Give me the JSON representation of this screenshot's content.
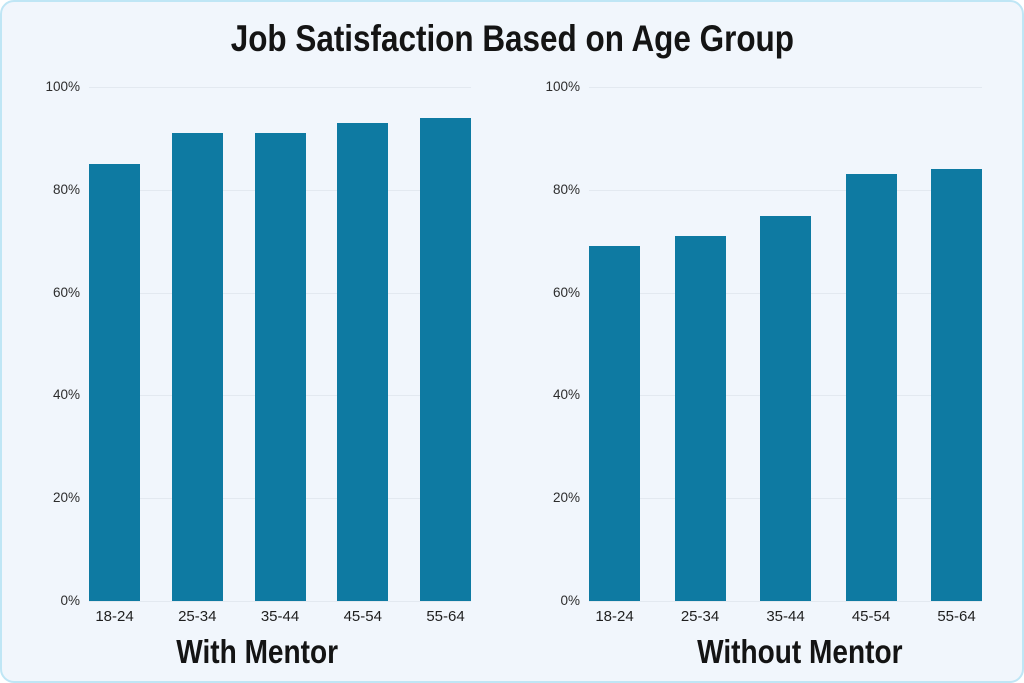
{
  "page": {
    "title": "Job Satisfaction Based on Age Group"
  },
  "colors": {
    "bar": "#0e7aa2",
    "card_background": "#f1f6fc",
    "card_border": "#bfe6f5",
    "gridline": "#e3e9f0",
    "text": "#141414"
  },
  "chart_data": [
    {
      "type": "bar",
      "title": "With Mentor",
      "categories": [
        "18-24",
        "25-34",
        "35-44",
        "45-54",
        "55-64"
      ],
      "values": [
        85,
        91,
        91,
        93,
        94
      ],
      "xlabel": "",
      "ylabel": "",
      "ylim": [
        0,
        100
      ],
      "yticks": [
        0,
        20,
        40,
        60,
        80,
        100
      ],
      "ytick_suffix": "%",
      "grid": true,
      "legend": false,
      "bar_color": "#0e7aa2"
    },
    {
      "type": "bar",
      "title": "Without Mentor",
      "categories": [
        "18-24",
        "25-34",
        "35-44",
        "45-54",
        "55-64"
      ],
      "values": [
        69,
        71,
        75,
        83,
        84
      ],
      "xlabel": "",
      "ylabel": "",
      "ylim": [
        0,
        100
      ],
      "yticks": [
        0,
        20,
        40,
        60,
        80,
        100
      ],
      "ytick_suffix": "%",
      "grid": true,
      "legend": false,
      "bar_color": "#0e7aa2"
    }
  ]
}
